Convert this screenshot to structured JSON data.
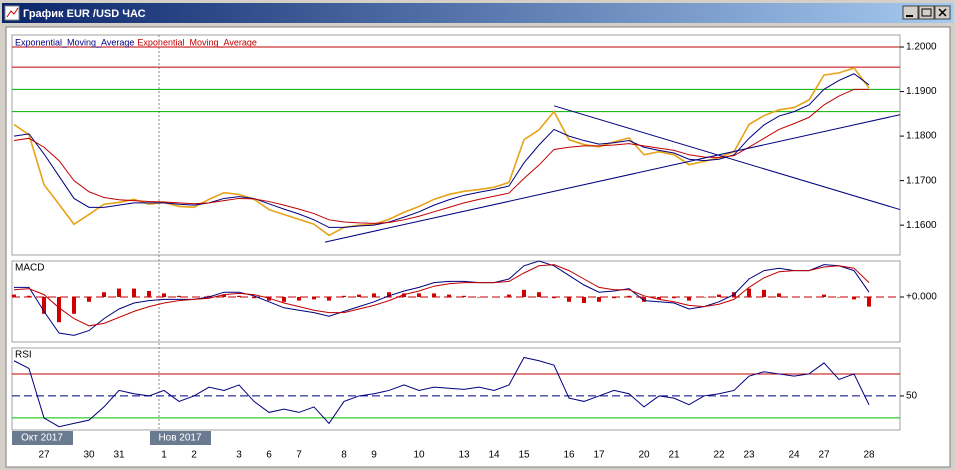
{
  "window": {
    "title": "График EUR /USD ЧАС"
  },
  "chart_data": [
    {
      "type": "line",
      "ylim": [
        1.1533,
        1.2027
      ],
      "yticks": [
        {
          "value": 1.2,
          "label": "1.2000"
        },
        {
          "value": 1.19,
          "label": "1.1900"
        },
        {
          "value": 1.18,
          "label": "1.1800"
        },
        {
          "value": 1.17,
          "label": "1.1700"
        },
        {
          "value": 1.16,
          "label": "1.1600"
        }
      ],
      "hlines": [
        {
          "value": 1.2,
          "color": "#c00000"
        },
        {
          "value": 1.1955,
          "color": "#c00000"
        },
        {
          "value": 1.1905,
          "color": "#00b000"
        },
        {
          "value": 1.1855,
          "color": "#00b000"
        }
      ],
      "trendlines": [
        {
          "x": [
            36,
            59.07
          ],
          "y": [
            1.1868,
            1.1635
          ],
          "color": "#000080"
        },
        {
          "x": [
            20.73,
            59.07
          ],
          "y": [
            1.1562,
            1.1848
          ],
          "color": "#000080"
        }
      ],
      "series": [
        {
          "color": "#e8a317",
          "values": [
            1.1826,
            1.1803,
            1.1691,
            1.1647,
            1.1602,
            1.1624,
            1.1647,
            1.1651,
            1.1658,
            1.1647,
            1.1651,
            1.1642,
            1.164,
            1.1658,
            1.1673,
            1.1669,
            1.1658,
            1.1635,
            1.1624,
            1.1613,
            1.1602,
            1.1577,
            1.1595,
            1.16,
            1.1602,
            1.1613,
            1.1629,
            1.1642,
            1.1658,
            1.1669,
            1.1676,
            1.168,
            1.1685,
            1.1696,
            1.1792,
            1.1814,
            1.1855,
            1.1792,
            1.1781,
            1.1776,
            1.1787,
            1.1796,
            1.1758,
            1.1765,
            1.1758,
            1.1736,
            1.1743,
            1.1752,
            1.1765,
            1.1826,
            1.1846,
            1.1859,
            1.1864,
            1.1881,
            1.1937,
            1.1942,
            1.1953,
            1.1908
          ]
        },
        {
          "name": "Exponential_Moving_Average",
          "color": "#000080",
          "values": [
            1.18,
            1.1805,
            1.176,
            1.171,
            1.166,
            1.164,
            1.164,
            1.1645,
            1.165,
            1.165,
            1.165,
            1.1647,
            1.1645,
            1.165,
            1.166,
            1.1664,
            1.166,
            1.1648,
            1.1636,
            1.1625,
            1.1612,
            1.1595,
            1.1595,
            1.1598,
            1.16,
            1.1607,
            1.1618,
            1.163,
            1.1645,
            1.1657,
            1.1667,
            1.1674,
            1.168,
            1.1688,
            1.174,
            1.178,
            1.1815,
            1.18,
            1.179,
            1.1782,
            1.1785,
            1.179,
            1.1775,
            1.1768,
            1.1762,
            1.1748,
            1.1745,
            1.1748,
            1.1758,
            1.1795,
            1.1825,
            1.1845,
            1.1855,
            1.187,
            1.1905,
            1.1925,
            1.194,
            1.1915
          ]
        },
        {
          "name": "Exponential_Moving_Average",
          "color": "#c00000",
          "values": [
            1.179,
            1.1795,
            1.1775,
            1.1745,
            1.17,
            1.1675,
            1.1662,
            1.1657,
            1.1655,
            1.1653,
            1.1652,
            1.165,
            1.1648,
            1.165,
            1.1655,
            1.166,
            1.1659,
            1.1653,
            1.1645,
            1.1636,
            1.1626,
            1.1612,
            1.1607,
            1.1605,
            1.1604,
            1.1606,
            1.1612,
            1.162,
            1.163,
            1.164,
            1.165,
            1.1658,
            1.1665,
            1.1672,
            1.1705,
            1.1735,
            1.177,
            1.1775,
            1.1778,
            1.1778,
            1.178,
            1.1783,
            1.1778,
            1.1773,
            1.1768,
            1.1758,
            1.1753,
            1.1752,
            1.1756,
            1.1775,
            1.1795,
            1.1815,
            1.1828,
            1.1842,
            1.187,
            1.189,
            1.1905,
            1.1905
          ]
        }
      ]
    },
    {
      "type": "line",
      "title": "MACD",
      "ylim": [
        -0.00375,
        0.003
      ],
      "yticks": [
        {
          "value": 0,
          "label": "+0.000"
        }
      ],
      "grid": true,
      "grid_color": "#c00000",
      "series": [
        {
          "type": "bar",
          "color": "#d00000",
          "values": [
            0.0002,
            0.0001,
            -0.0014,
            -0.0021,
            -0.0014,
            -0.0004,
            0.0004,
            0.0007,
            0.0007,
            0.0005,
            0.0003,
            0.0001,
            0,
            0.0001,
            0.0002,
            0.0001,
            -0.0001,
            -0.0003,
            -0.0004,
            -0.0003,
            -0.0002,
            -0.0003,
            0.0001,
            0.0002,
            0.0003,
            0.0004,
            0.0003,
            0.0003,
            0.0003,
            0.0002,
            0.0001,
            0,
            0,
            0.0002,
            0.0006,
            0.0004,
            -0.0001,
            -0.0004,
            -0.0005,
            -0.0004,
            -0.0001,
            0.0001,
            -0.0004,
            -0.0002,
            -0.0001,
            -0.0003,
            0,
            0.0002,
            0.0004,
            0.0007,
            0.0006,
            0.0003,
            0,
            0,
            0.0002,
            0,
            -0.0002,
            -0.0008
          ]
        },
        {
          "color": "#000080",
          "values": [
            0.0008,
            0.0008,
            -0.0012,
            -0.003,
            -0.0032,
            -0.0028,
            -0.0018,
            -0.001,
            -0.0005,
            -0.0003,
            -0.0002,
            -0.0002,
            -0.0002,
            0,
            0.0004,
            0.0004,
            0.0001,
            -0.0004,
            -0.0009,
            -0.0011,
            -0.0013,
            -0.0016,
            -0.0012,
            -0.0008,
            -0.0004,
            0.0001,
            0.0005,
            0.0008,
            0.0012,
            0.0013,
            0.0013,
            0.0012,
            0.0012,
            0.0015,
            0.0026,
            0.003,
            0.0026,
            0.0018,
            0.001,
            0.0004,
            0.0005,
            0.0007,
            -0.0003,
            -0.0004,
            -0.0005,
            -0.001,
            -0.0008,
            -0.0004,
            0.0002,
            0.0015,
            0.0022,
            0.0024,
            0.0022,
            0.0022,
            0.0027,
            0.0026,
            0.0022,
            0.0004
          ]
        },
        {
          "color": "#c00000",
          "values": [
            0.0006,
            0.0007,
            0.0002,
            -0.0009,
            -0.0018,
            -0.0024,
            -0.0022,
            -0.0017,
            -0.0012,
            -0.0008,
            -0.0005,
            -0.0003,
            -0.0002,
            -0.0001,
            0.0002,
            0.0003,
            0.0002,
            -0.0001,
            -0.0005,
            -0.0008,
            -0.0011,
            -0.0013,
            -0.0013,
            -0.001,
            -0.0007,
            -0.0003,
            0.0002,
            0.0005,
            0.0009,
            0.0011,
            0.0012,
            0.0012,
            0.0012,
            0.0013,
            0.002,
            0.0026,
            0.0027,
            0.0022,
            0.0015,
            0.0008,
            0.0006,
            0.0006,
            0.0001,
            -0.0002,
            -0.0004,
            -0.0007,
            -0.0008,
            -0.0006,
            -0.0002,
            0.0008,
            0.0016,
            0.0021,
            0.0022,
            0.0022,
            0.0025,
            0.0026,
            0.0024,
            0.0012
          ]
        }
      ]
    },
    {
      "type": "line",
      "title": "RSI",
      "ylim": [
        19,
        93.6
      ],
      "yticks": [
        50
      ],
      "grid": true,
      "grid_color": "#000080",
      "hlines": [
        {
          "value": 70,
          "color": "#c00000"
        },
        {
          "value": 30,
          "color": "#00c000"
        }
      ],
      "categories": [
        null,
        null,
        "27",
        null,
        null,
        "30",
        null,
        "31",
        null,
        null,
        "1",
        null,
        "2",
        null,
        null,
        "3",
        null,
        "6",
        null,
        "7",
        null,
        null,
        "8",
        null,
        "9",
        null,
        null,
        "10",
        null,
        null,
        "13",
        null,
        "14",
        null,
        "15",
        null,
        null,
        "16",
        null,
        "17",
        null,
        null,
        "20",
        null,
        "21",
        null,
        null,
        "22",
        null,
        "23",
        null,
        null,
        "24",
        null,
        "27",
        null,
        null,
        "28"
      ],
      "period_labels": [
        "Окт 2017",
        "Нов 2017"
      ],
      "series": [
        {
          "color": "#000080",
          "values": [
            82,
            75,
            30,
            22,
            25,
            28,
            40,
            55,
            52,
            50,
            55,
            45,
            50,
            58,
            55,
            60,
            45,
            35,
            38,
            35,
            40,
            25,
            45,
            50,
            52,
            55,
            60,
            55,
            58,
            57,
            56,
            58,
            55,
            60,
            85,
            82,
            78,
            48,
            45,
            50,
            55,
            52,
            40,
            50,
            48,
            42,
            50,
            52,
            55,
            68,
            72,
            70,
            68,
            70,
            80,
            65,
            70,
            42
          ]
        }
      ]
    }
  ]
}
